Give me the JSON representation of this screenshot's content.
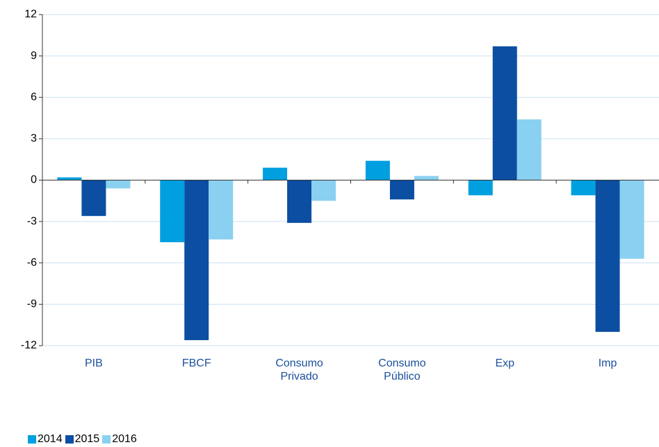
{
  "chart_data": {
    "type": "bar",
    "categories": [
      "PIB",
      "FBCF",
      "Consumo Privado",
      "Consumo Público",
      "Exp",
      "Imp"
    ],
    "series": [
      {
        "name": "2014",
        "color": "#00a0e0",
        "values": [
          0.2,
          -4.5,
          0.9,
          1.4,
          -1.1,
          -1.1
        ]
      },
      {
        "name": "2015",
        "color": "#0b4ea2",
        "values": [
          -2.6,
          -11.6,
          -3.1,
          -1.4,
          9.7,
          -11.0
        ]
      },
      {
        "name": "2016",
        "color": "#8ad0f0",
        "values": [
          -0.6,
          -4.3,
          -1.5,
          0.3,
          4.4,
          -5.7
        ]
      }
    ],
    "ylim": [
      -12,
      12
    ],
    "yticks": [
      -12,
      -9,
      -6,
      -3,
      0,
      3,
      6,
      9,
      12
    ],
    "grid": true,
    "legend": "bottom-left"
  }
}
